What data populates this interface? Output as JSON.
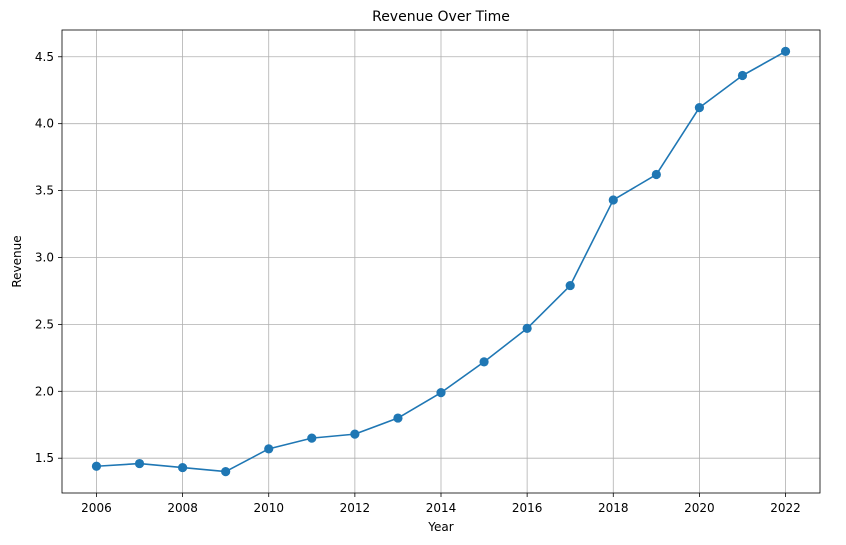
{
  "chart_data": {
    "type": "line",
    "title": "Revenue Over Time",
    "xlabel": "Year",
    "ylabel": "Revenue",
    "grid": true,
    "xlim": [
      2005.2,
      2022.8
    ],
    "ylim": [
      1.24,
      4.7
    ],
    "xticks": [
      2006,
      2008,
      2010,
      2012,
      2014,
      2016,
      2018,
      2020,
      2022
    ],
    "yticks": [
      1.5,
      2.0,
      2.5,
      3.0,
      3.5,
      4.0,
      4.5
    ],
    "series": [
      {
        "color": "#1f77b4",
        "marker": "circle",
        "x": [
          2006,
          2007,
          2008,
          2009,
          2010,
          2011,
          2012,
          2013,
          2014,
          2015,
          2016,
          2017,
          2018,
          2019,
          2020,
          2021,
          2022
        ],
        "y": [
          1.44,
          1.46,
          1.43,
          1.4,
          1.57,
          1.65,
          1.68,
          1.8,
          1.99,
          2.22,
          2.47,
          2.79,
          3.43,
          3.62,
          4.12,
          4.36,
          4.54
        ]
      }
    ]
  }
}
